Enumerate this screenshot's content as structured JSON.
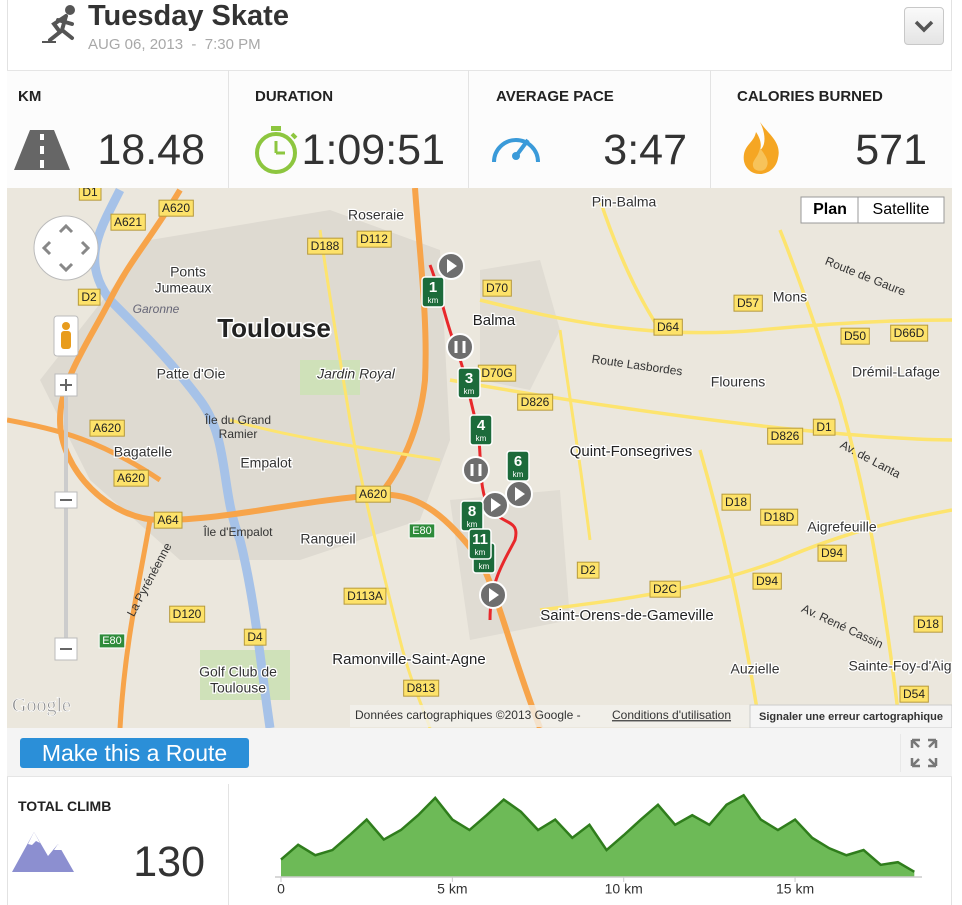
{
  "header": {
    "title": "Tuesday Skate",
    "date": "AUG 06, 2013  -  7:30 PM"
  },
  "stats": [
    {
      "label": "KM",
      "value": "18.48"
    },
    {
      "label": "DURATION",
      "value": "1:09:51"
    },
    {
      "label": "AVERAGE PACE",
      "value": "3:47"
    },
    {
      "label": "CALORIES BURNED",
      "value": "571"
    }
  ],
  "map": {
    "labels": [
      "Pin-Balma",
      "Roseraie",
      "D1",
      "A620",
      "A621",
      "D188",
      "D112",
      "Ponts",
      "Jumeaux",
      "D2",
      "Garonne",
      "Toulouse",
      "D70",
      "Balma",
      "Mons",
      "D57",
      "D64",
      "D50",
      "D66D",
      "Route de Gaure",
      "Route Lasbordes",
      "Flourens",
      "Drémil-Lafage",
      "Patte d'Oie",
      "Jardin Royal",
      "D70G",
      "D826",
      "Île du Grand",
      "Ramier",
      "A620",
      "Bagatelle",
      "Empalot",
      "A620",
      "Quint-Fonsegrives",
      "D826",
      "D1",
      "Av. de Lanta",
      "D18",
      "D18D",
      "Aigrefeuille",
      "A620",
      "A64",
      "Île d'Empalot",
      "E80",
      "Rangueil",
      "La Pyrénéenne",
      "D94",
      "D2",
      "D2C",
      "D94",
      "D113A",
      "Saint-Orens-de-Gameville",
      "D120",
      "E80",
      "D4",
      "Av. René Cassin",
      "D18",
      "Ramonville-Saint-Agne",
      "Auzielle",
      "Sainte-Foy-d'Aig",
      "Golf Club de",
      "Toulouse",
      "D813",
      "D54"
    ],
    "km_markers": [
      "1",
      "3",
      "4",
      "6",
      "8",
      "9",
      "11"
    ],
    "km_unit": "km",
    "buttons": [
      "Plan",
      "Satellite"
    ],
    "attribution": "Données cartographiques ©2013 Google - ",
    "terms": "Conditions d'utilisation",
    "report": "Signaler une erreur cartographique",
    "logo": "Google"
  },
  "route_button": "Make this a Route",
  "total_climb": {
    "label": "TOTAL CLIMB",
    "value": "130"
  },
  "elevation": {
    "type": "area",
    "color": "#2f7d1c",
    "x": [
      0,
      0.5,
      1,
      1.5,
      2,
      2.5,
      3,
      3.5,
      4,
      4.5,
      5,
      5.5,
      6,
      6.5,
      7,
      7.5,
      8,
      8.5,
      9,
      9.5,
      10,
      10.5,
      11,
      11.5,
      12,
      12.5,
      13,
      13.5,
      14,
      14.5,
      15,
      15.5,
      16,
      16.5,
      17,
      17.5,
      18,
      18.48
    ],
    "values": [
      20,
      37,
      25,
      31,
      48,
      66,
      43,
      54,
      71,
      91,
      66,
      54,
      71,
      89,
      75,
      54,
      66,
      45,
      60,
      31,
      48,
      66,
      83,
      60,
      71,
      60,
      83,
      94,
      66,
      54,
      66,
      45,
      33,
      25,
      31,
      14,
      17,
      6
    ],
    "xlim": [
      0,
      18.5
    ],
    "ylim": [
      0,
      100
    ],
    "xticks": [
      0,
      {
        "value": 5,
        "label": "5 km"
      },
      {
        "value": 10,
        "label": "10 km"
      },
      {
        "value": 15,
        "label": "15 km"
      }
    ]
  }
}
